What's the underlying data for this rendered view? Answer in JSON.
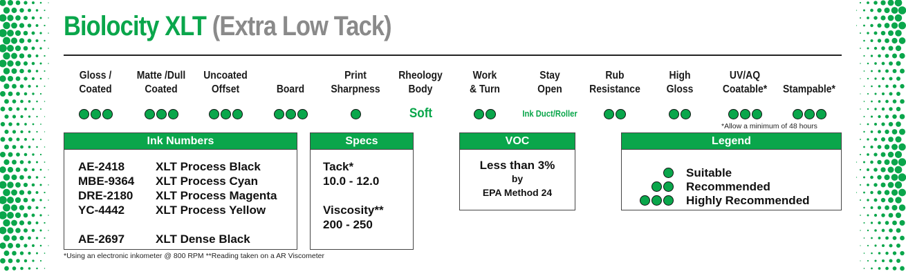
{
  "title": {
    "brand": "Biolocity XLT",
    "subtitle": "(Extra Low Tack)"
  },
  "colors": {
    "brand_green": "#0aa64b",
    "subtitle_gray": "#8a8a8a"
  },
  "properties": [
    {
      "id": "gloss-coated",
      "line1": "Gloss /",
      "line2": "Coated",
      "dots": 3
    },
    {
      "id": "matte-dull-coated",
      "line1": "Matte /Dull",
      "line2": "Coated",
      "dots": 3
    },
    {
      "id": "uncoated-offset",
      "line1": "Uncoated",
      "line2": "Offset",
      "dots": 3
    },
    {
      "id": "board",
      "line1": "",
      "line2": "Board",
      "dots": 3
    },
    {
      "id": "print-sharpness",
      "line1": "Print",
      "line2": "Sharpness",
      "dots": 1
    },
    {
      "id": "rheology-body",
      "line1": "Rheology",
      "line2": "Body",
      "text": "Soft"
    },
    {
      "id": "work-turn",
      "line1": "Work",
      "line2": "& Turn",
      "dots": 2
    },
    {
      "id": "stay-open",
      "line1": "Stay",
      "line2": "Open",
      "text": "Ink Duct/Roller"
    },
    {
      "id": "rub-resistance",
      "line1": "Rub",
      "line2": "Resistance",
      "dots": 2
    },
    {
      "id": "high-gloss",
      "line1": "High",
      "line2": "Gloss",
      "dots": 2
    },
    {
      "id": "uv-aq-coatable",
      "line1": "UV/AQ",
      "line2": "Coatable*",
      "dots": 3
    },
    {
      "id": "stampable",
      "line1": "",
      "line2": "Stampable*",
      "dots": 3
    }
  ],
  "uv_footnote": "*Allow a minimum of 48 hours",
  "ink_numbers": {
    "header": "Ink Numbers",
    "rows": [
      {
        "code": "AE-2418",
        "name": "XLT Process Black"
      },
      {
        "code": "MBE-9364",
        "name": "XLT Process Cyan"
      },
      {
        "code": "DRE-2180",
        "name": "XLT Process Magenta"
      },
      {
        "code": "YC-4442",
        "name": "XLT Process Yellow"
      }
    ],
    "extra": {
      "code": "AE-2697",
      "name": "XLT Dense Black"
    }
  },
  "specs": {
    "header": "Specs",
    "tack_label": "Tack*",
    "tack_value": "10.0 - 12.0",
    "viscosity_label": "Viscosity**",
    "viscosity_value": "200 - 250"
  },
  "voc": {
    "header": "VOC",
    "line1": "Less than 3%",
    "line2": "by",
    "line3": "EPA Method 24"
  },
  "legend": {
    "header": "Legend",
    "items": [
      {
        "dots": 1,
        "label": "Suitable"
      },
      {
        "dots": 2,
        "label": "Recommended"
      },
      {
        "dots": 3,
        "label": "Highly Recommended"
      }
    ]
  },
  "bottom_footnote": "*Using an electronic inkometer @ 800 RPM  **Reading taken on a AR Viscometer"
}
